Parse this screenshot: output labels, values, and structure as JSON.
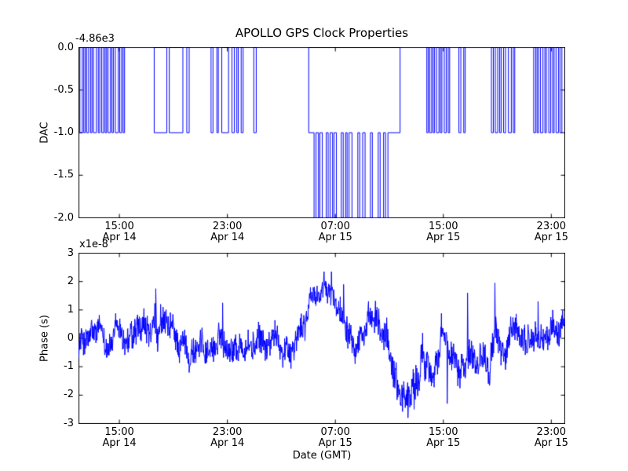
{
  "figure": {
    "background": "#ffffff",
    "line_color": "#0000ff",
    "frame_color": "#000000"
  },
  "xaxis": {
    "ticks": [
      {
        "frac": 0.0833,
        "time": "15:00",
        "date": "Apr 14"
      },
      {
        "frac": 0.3056,
        "time": "23:00",
        "date": "Apr 14"
      },
      {
        "frac": 0.5278,
        "time": "07:00",
        "date": "Apr 15"
      },
      {
        "frac": 0.75,
        "time": "15:00",
        "date": "Apr 15"
      },
      {
        "frac": 0.9722,
        "time": "23:00",
        "date": "Apr 15"
      }
    ]
  },
  "chart_data": [
    {
      "type": "line",
      "title": "APOLLO GPS Clock Properties",
      "ylabel": "DAC",
      "offset_text": "-4.86e3",
      "ylim": [
        -2.0,
        0.0
      ],
      "yticks": [
        "0.0",
        "-0.5",
        "-1.0",
        "-1.5",
        "-2.0"
      ],
      "ytick_values": [
        0.0,
        -0.5,
        -1.0,
        -1.5,
        -2.0
      ],
      "description": "Step signal toggling between DAC levels (offset -4.86e3); toggles 0/-1 at edges, -1/-2 in the middle section near 07:00 Apr 15",
      "baseline_segments": [
        [
          0.0,
          0.473,
          0
        ],
        [
          0.473,
          0.661,
          -1
        ],
        [
          0.661,
          1.0,
          0
        ]
      ],
      "pulses": [
        [
          0.002,
          0.005,
          -1
        ],
        [
          0.01,
          0.003,
          -1
        ],
        [
          0.016,
          0.004,
          -1
        ],
        [
          0.024,
          0.003,
          -1
        ],
        [
          0.03,
          0.006,
          -1
        ],
        [
          0.04,
          0.003,
          -1
        ],
        [
          0.047,
          0.004,
          -1
        ],
        [
          0.054,
          0.003,
          -1
        ],
        [
          0.06,
          0.005,
          -1
        ],
        [
          0.068,
          0.003,
          -1
        ],
        [
          0.075,
          0.006,
          -1
        ],
        [
          0.084,
          0.004,
          -1
        ],
        [
          0.091,
          0.003,
          -1
        ],
        [
          0.155,
          0.026,
          -1
        ],
        [
          0.186,
          0.028,
          -1
        ],
        [
          0.222,
          0.005,
          -1
        ],
        [
          0.272,
          0.004,
          -1
        ],
        [
          0.284,
          0.003,
          -1
        ],
        [
          0.294,
          0.014,
          -1
        ],
        [
          0.315,
          0.005,
          -1
        ],
        [
          0.325,
          0.003,
          -1
        ],
        [
          0.334,
          0.004,
          -1
        ],
        [
          0.36,
          0.005,
          -1
        ],
        [
          0.484,
          0.004,
          -2
        ],
        [
          0.493,
          0.003,
          -2
        ],
        [
          0.501,
          0.008,
          -2
        ],
        [
          0.513,
          0.004,
          -2
        ],
        [
          0.522,
          0.003,
          -2
        ],
        [
          0.53,
          0.01,
          -2
        ],
        [
          0.544,
          0.005,
          -2
        ],
        [
          0.552,
          0.004,
          -2
        ],
        [
          0.562,
          0.012,
          -2
        ],
        [
          0.578,
          0.006,
          -2
        ],
        [
          0.589,
          0.011,
          -2
        ],
        [
          0.604,
          0.012,
          -2
        ],
        [
          0.62,
          0.007,
          -2
        ],
        [
          0.631,
          0.005,
          -2
        ],
        [
          0.716,
          0.003,
          -1
        ],
        [
          0.722,
          0.004,
          -1
        ],
        [
          0.729,
          0.003,
          -1
        ],
        [
          0.736,
          0.005,
          -1
        ],
        [
          0.744,
          0.003,
          -1
        ],
        [
          0.752,
          0.004,
          -1
        ],
        [
          0.76,
          0.003,
          -1
        ],
        [
          0.782,
          0.004,
          -1
        ],
        [
          0.792,
          0.003,
          -1
        ],
        [
          0.849,
          0.004,
          -1
        ],
        [
          0.857,
          0.005,
          -1
        ],
        [
          0.866,
          0.003,
          -1
        ],
        [
          0.874,
          0.004,
          -1
        ],
        [
          0.884,
          0.006,
          -1
        ],
        [
          0.894,
          0.003,
          -1
        ],
        [
          0.936,
          0.004,
          -1
        ],
        [
          0.943,
          0.003,
          -1
        ],
        [
          0.95,
          0.005,
          -1
        ],
        [
          0.959,
          0.003,
          -1
        ],
        [
          0.967,
          0.004,
          -1
        ],
        [
          0.975,
          0.003,
          -1
        ],
        [
          0.982,
          0.005,
          -1
        ],
        [
          0.99,
          0.004,
          -1
        ]
      ]
    },
    {
      "type": "line",
      "ylabel": "Phase (s)",
      "xlabel": "Date (GMT)",
      "offset_text": "x1e-8",
      "ylim": [
        -3,
        3
      ],
      "yticks": [
        "3",
        "2",
        "1",
        "0",
        "-1",
        "-2",
        "-3"
      ],
      "ytick_values": [
        3,
        2,
        1,
        0,
        -1,
        -2,
        -3
      ],
      "description": "Noisy clock phase around 0, rising to ~+1.7e-8 just before 07:00 Apr 15, dipping to ~-2.8e-8 near 11:00 Apr 15, returning toward 0",
      "envelope": [
        [
          0.0,
          -0.1,
          0.45
        ],
        [
          0.08,
          -0.05,
          0.45
        ],
        [
          0.13,
          -0.25,
          0.5
        ],
        [
          0.18,
          0.1,
          0.5
        ],
        [
          0.22,
          -0.3,
          0.45
        ],
        [
          0.27,
          -0.25,
          0.45
        ],
        [
          0.31,
          -0.05,
          0.4
        ],
        [
          0.35,
          -0.3,
          0.45
        ],
        [
          0.4,
          -0.2,
          0.45
        ],
        [
          0.44,
          -0.1,
          0.4
        ],
        [
          0.46,
          0.3,
          0.4
        ],
        [
          0.475,
          1.3,
          0.35
        ],
        [
          0.5,
          1.7,
          0.35
        ],
        [
          0.515,
          1.45,
          0.4
        ],
        [
          0.53,
          1.1,
          0.4
        ],
        [
          0.55,
          0.85,
          0.45
        ],
        [
          0.575,
          0.55,
          0.45
        ],
        [
          0.6,
          0.35,
          0.45
        ],
        [
          0.62,
          0.1,
          0.5
        ],
        [
          0.645,
          -0.7,
          0.6
        ],
        [
          0.66,
          -1.6,
          0.6
        ],
        [
          0.675,
          -2.0,
          0.55
        ],
        [
          0.69,
          -1.6,
          0.6
        ],
        [
          0.705,
          -0.9,
          0.6
        ],
        [
          0.72,
          -0.55,
          0.55
        ],
        [
          0.75,
          -0.35,
          0.5
        ],
        [
          0.79,
          -0.45,
          0.5
        ],
        [
          0.83,
          -0.3,
          0.5
        ],
        [
          0.87,
          -0.35,
          0.5
        ],
        [
          0.91,
          -0.1,
          0.45
        ],
        [
          0.95,
          0.0,
          0.45
        ],
        [
          1.0,
          0.35,
          0.4
        ]
      ],
      "spikes": [
        [
          0.158,
          1.75
        ],
        [
          0.168,
          1.2
        ],
        [
          0.296,
          1.25
        ],
        [
          0.52,
          2.35
        ],
        [
          0.545,
          1.9
        ],
        [
          0.677,
          -2.8
        ],
        [
          0.69,
          -2.5
        ],
        [
          0.758,
          -2.3
        ],
        [
          0.8,
          1.6
        ],
        [
          0.856,
          1.95
        ],
        [
          0.945,
          1.3
        ],
        [
          0.975,
          1.0
        ]
      ],
      "noise_seed": 12345,
      "n_points": 1600
    }
  ]
}
